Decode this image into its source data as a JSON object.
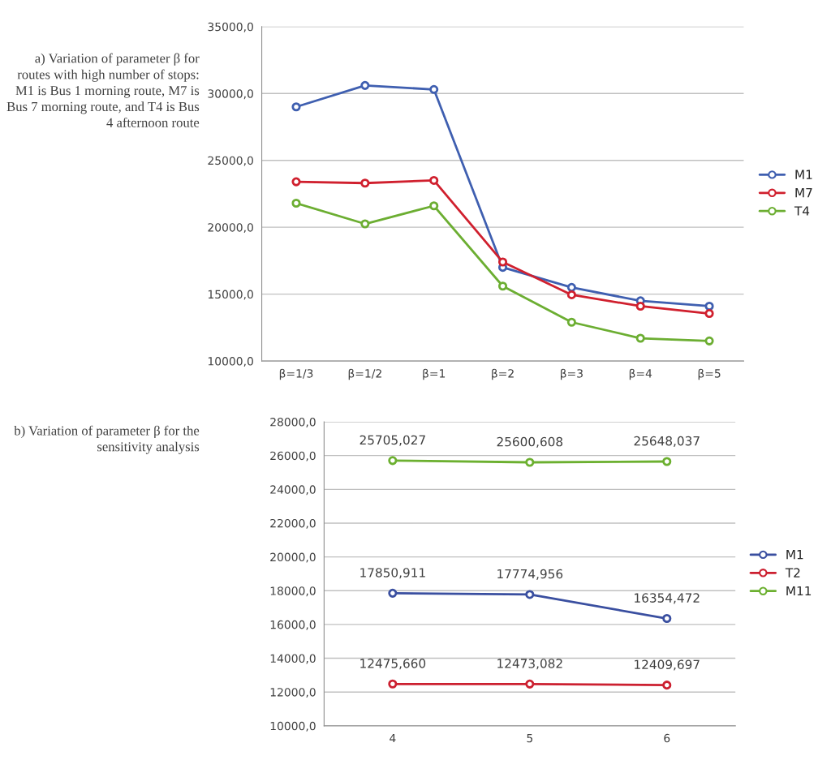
{
  "chart_data": [
    {
      "type": "line",
      "annotations": [
        "a) Variation of parameter β for routes with high number of stops: M1 is Bus 1 morning route, M7 is Bus 7 morning route, and T4 is Bus 4 afternoon route"
      ],
      "categories": [
        "β=1/3",
        "β=1/2",
        "β=1",
        "β=2",
        "β=3",
        "β=4",
        "β=5"
      ],
      "series": [
        {
          "name": "M1",
          "color": "#3f5fb0",
          "values": [
            29000,
            30600,
            30300,
            17000,
            15500,
            14500,
            14100
          ]
        },
        {
          "name": "M7",
          "color": "#d0202e",
          "values": [
            23400,
            23300,
            23500,
            17400,
            14950,
            14100,
            13550
          ]
        },
        {
          "name": "T4",
          "color": "#6cae32",
          "values": [
            21800,
            20250,
            21600,
            15600,
            12900,
            11700,
            11500
          ]
        }
      ],
      "ylim": [
        10000,
        35000
      ],
      "yticks": [
        {
          "value": 10000,
          "label": "10000,0"
        },
        {
          "value": 15000,
          "label": "15000,0"
        },
        {
          "value": 20000,
          "label": "20000,0"
        },
        {
          "value": 25000,
          "label": "25000,0"
        },
        {
          "value": 30000,
          "label": "30000,0"
        },
        {
          "value": 35000,
          "label": "35000,0"
        }
      ],
      "grid": "y",
      "legend": "right",
      "marker": "circle",
      "line_style": "solid"
    },
    {
      "type": "line",
      "annotations": [
        "b) Variation of parameter β for the sensitivity analysis"
      ],
      "categories": [
        "4",
        "5",
        "6"
      ],
      "series": [
        {
          "name": "M1",
          "color": "#3a4fa0",
          "values": [
            17850.911,
            17774.956,
            16354.472
          ],
          "value_labels": [
            "17850,911",
            "17774,956",
            "16354,472"
          ]
        },
        {
          "name": "T2",
          "color": "#cc2030",
          "values": [
            12475.66,
            12473.082,
            12409.697
          ],
          "value_labels": [
            "12475,660",
            "12473,082",
            "12409,697"
          ]
        },
        {
          "name": "M11",
          "color": "#6cb030",
          "values": [
            25705.027,
            25600.608,
            25648.037
          ],
          "value_labels": [
            "25705,027",
            "25600,608",
            "25648,037"
          ]
        }
      ],
      "ylim": [
        10000,
        28000
      ],
      "yticks": [
        {
          "value": 10000,
          "label": "10000,0"
        },
        {
          "value": 12000,
          "label": "12000,0"
        },
        {
          "value": 14000,
          "label": "14000,0"
        },
        {
          "value": 16000,
          "label": "16000,0"
        },
        {
          "value": 18000,
          "label": "18000,0"
        },
        {
          "value": 20000,
          "label": "20000,0"
        },
        {
          "value": 22000,
          "label": "22000,0"
        },
        {
          "value": 24000,
          "label": "24000,0"
        },
        {
          "value": 26000,
          "label": "26000,0"
        },
        {
          "value": 28000,
          "label": "28000,0"
        }
      ],
      "grid": "y",
      "legend": "right",
      "marker": "circle",
      "line_style": "solid"
    }
  ]
}
